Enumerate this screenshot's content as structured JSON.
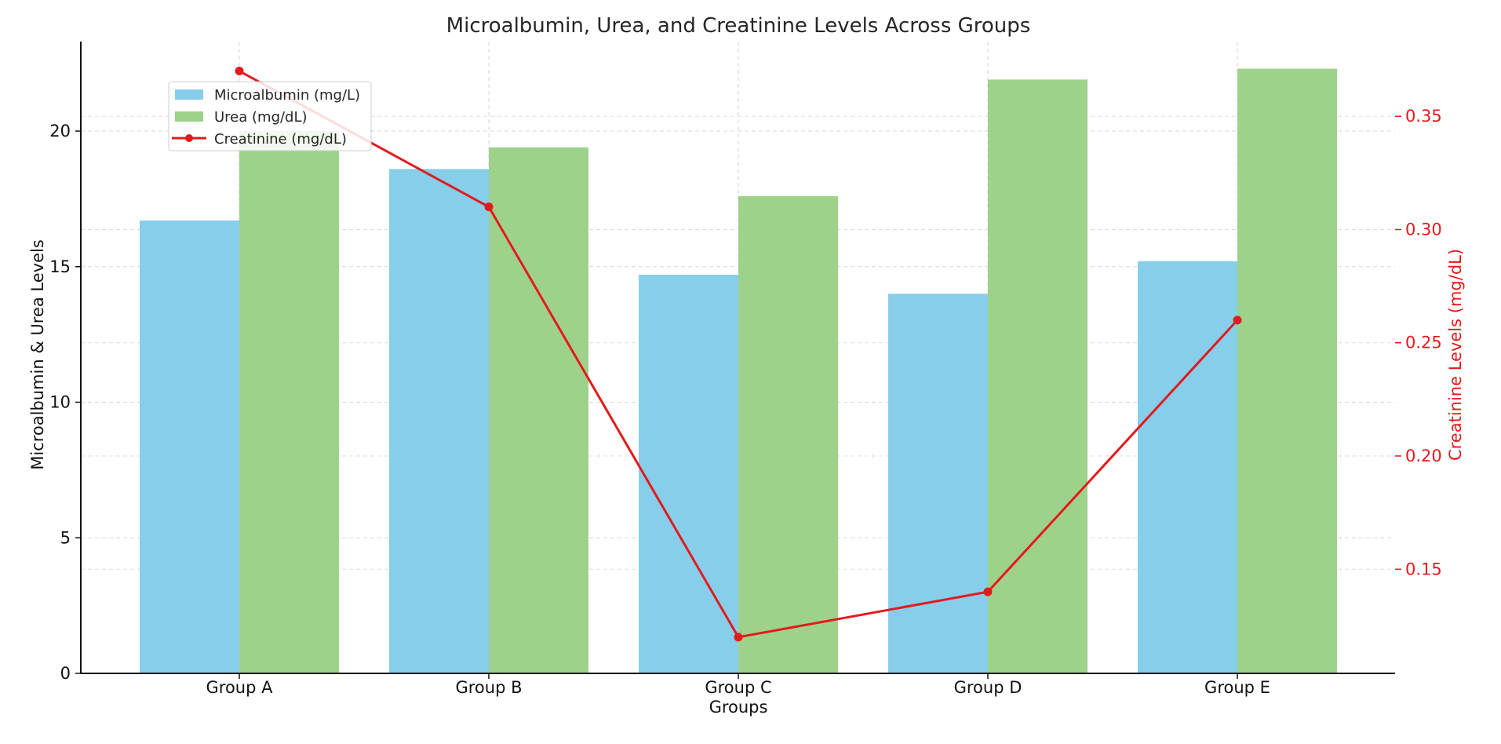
{
  "chart_data": {
    "type": "bar",
    "title": "Microalbumin, Urea, and Creatinine Levels Across Groups",
    "xlabel": "Groups",
    "ylabel": "Microalbumin & Urea Levels",
    "y2label": "Creatinine Levels (mg/dL)",
    "categories": [
      "Group A",
      "Group B",
      "Group C",
      "Group D",
      "Group E"
    ],
    "ylim": [
      0,
      23.3
    ],
    "y2lim": [
      0.104,
      0.383
    ],
    "yticks": [
      0,
      5,
      10,
      15,
      20
    ],
    "y2ticks": [
      "0.15",
      "0.20",
      "0.25",
      "0.30",
      "0.35"
    ],
    "grid": true,
    "legend_position": "top-left",
    "series": [
      {
        "name": "Microalbumin (mg/L)",
        "type": "bar",
        "axis": "left",
        "color": "#87ceeb",
        "values": [
          16.7,
          18.6,
          14.7,
          14.0,
          15.2
        ]
      },
      {
        "name": "Urea (mg/dL)",
        "type": "bar",
        "axis": "left",
        "color": "#9ed28b",
        "values": [
          20.0,
          19.4,
          17.6,
          21.9,
          22.3
        ]
      },
      {
        "name": "Creatinine (mg/dL)",
        "type": "line",
        "axis": "right",
        "color": "#e31a1c",
        "values": [
          0.37,
          0.31,
          0.12,
          0.14,
          0.26
        ]
      }
    ]
  }
}
